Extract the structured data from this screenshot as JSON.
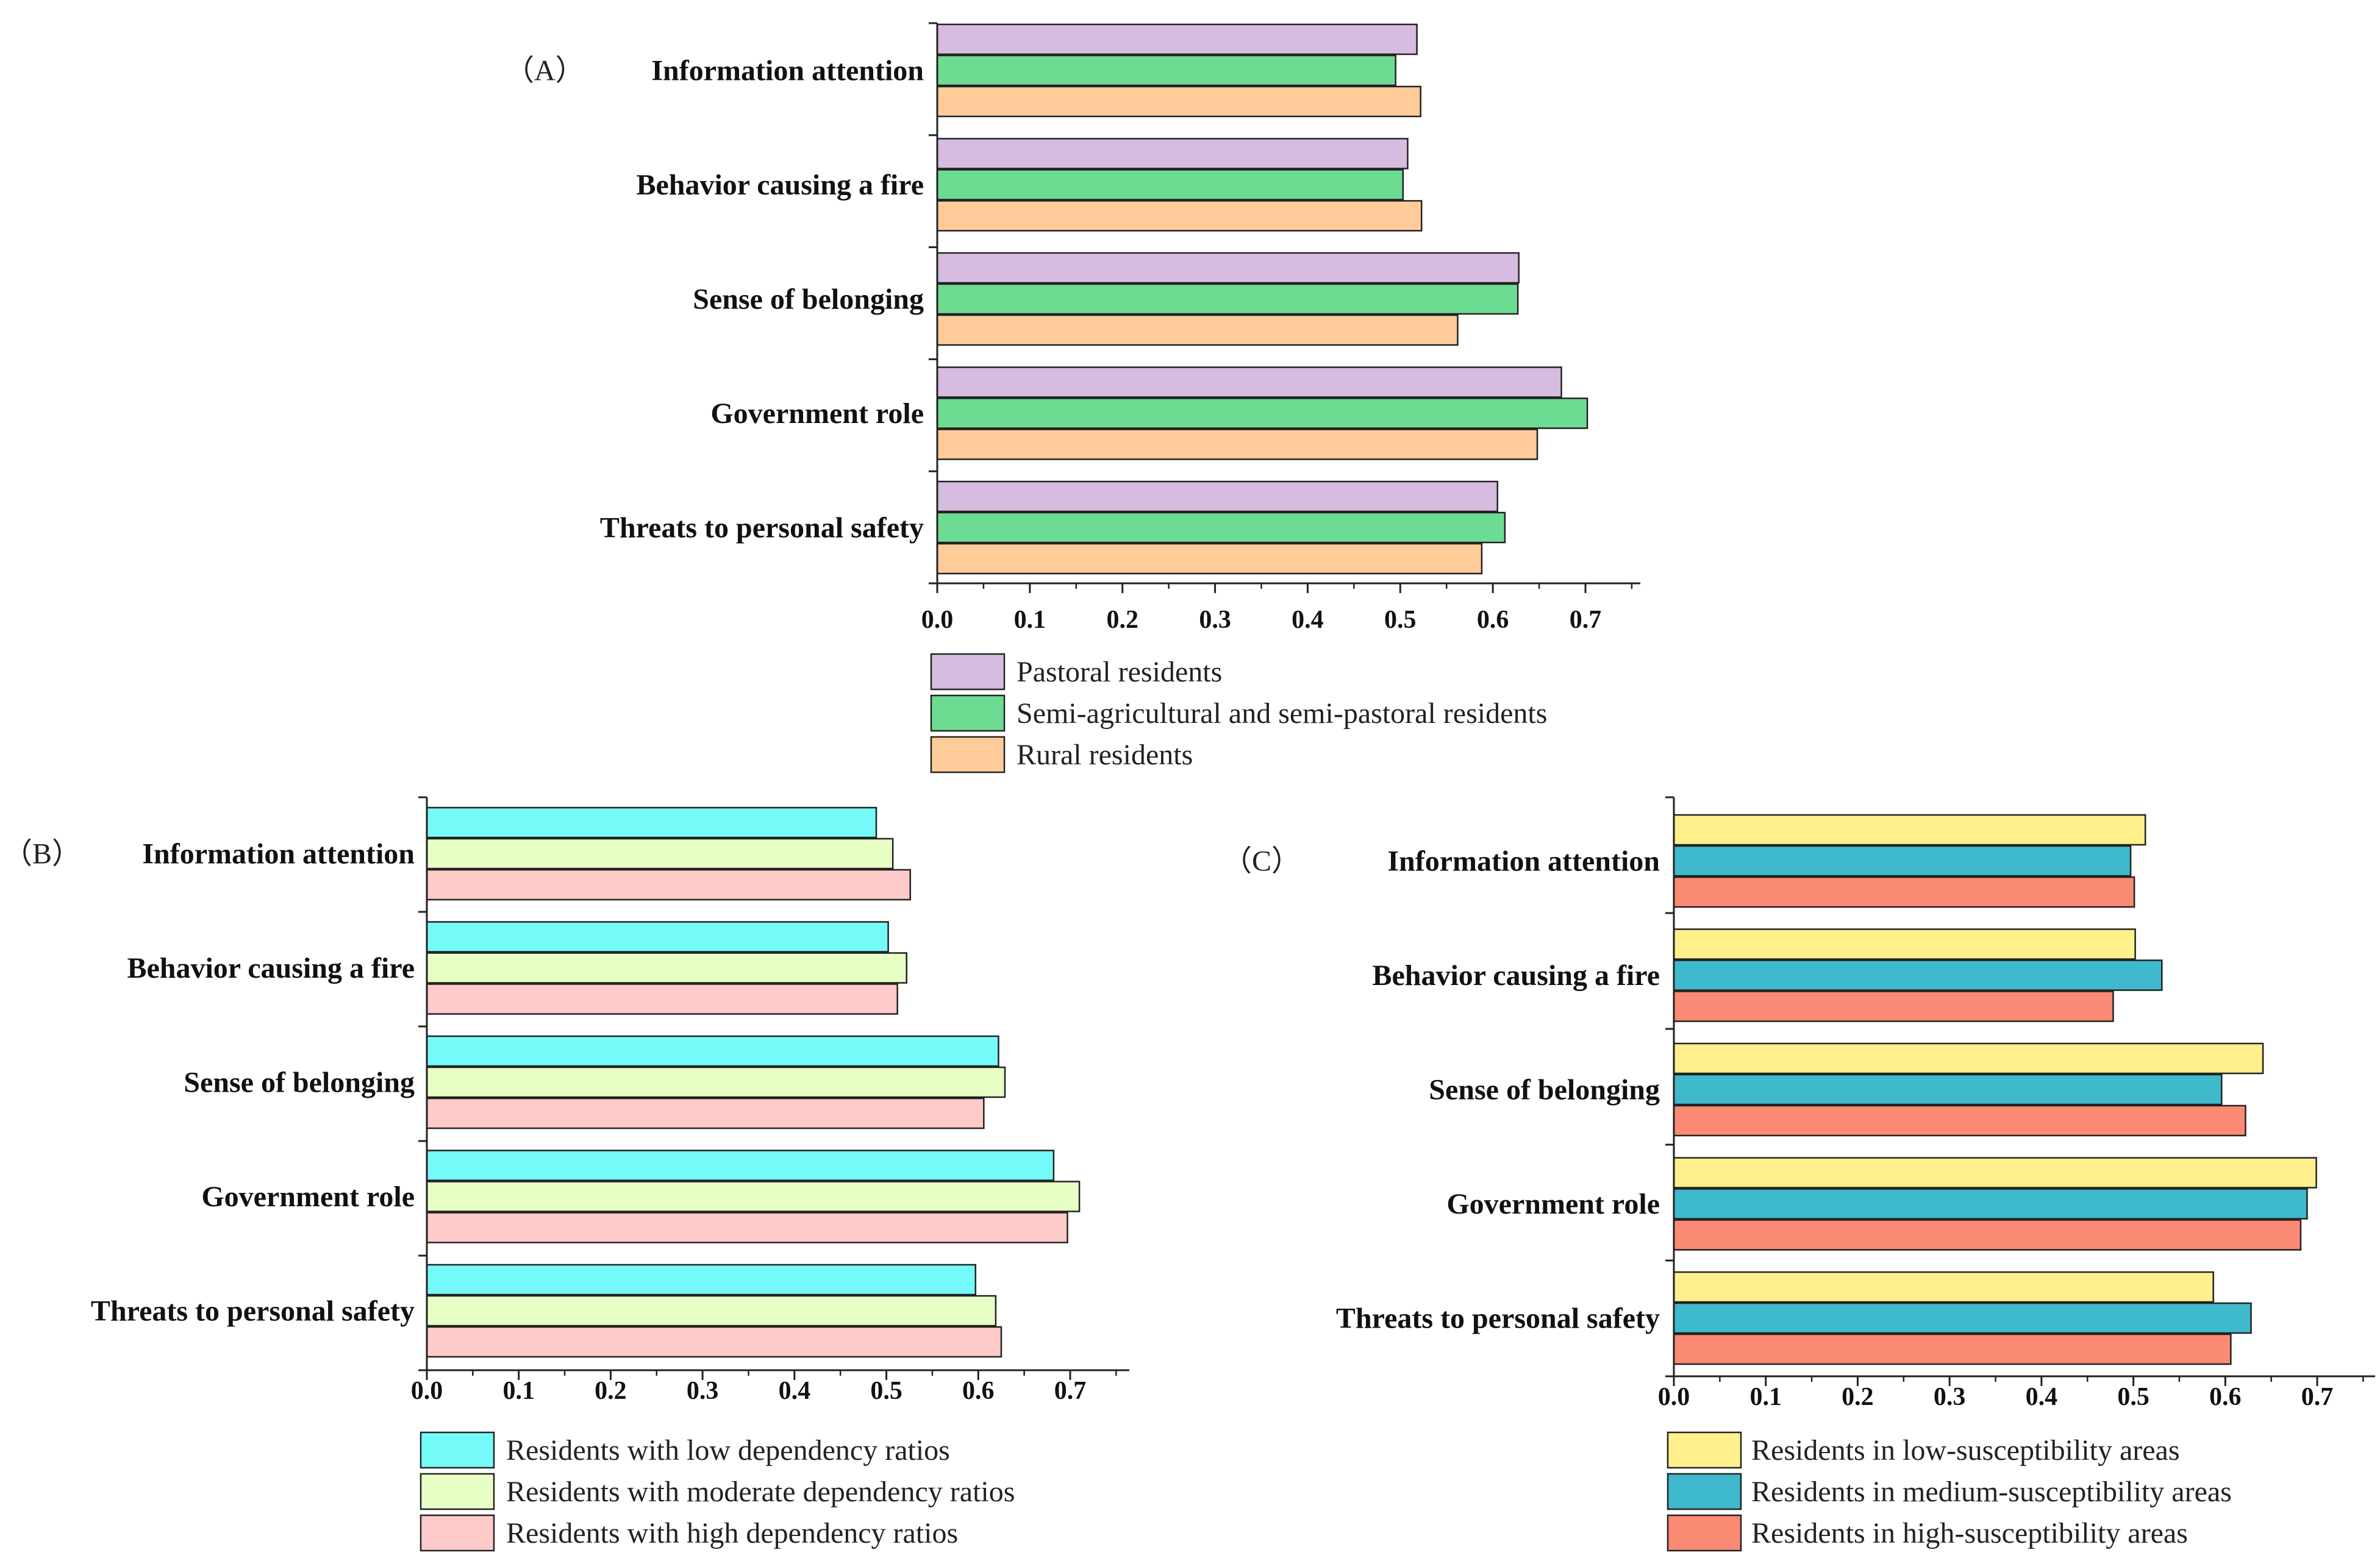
{
  "chart_data": [
    {
      "panel": "A",
      "type": "bar",
      "orientation": "horizontal",
      "panel_label": "（A）",
      "categories": [
        "Information attention",
        "Behavior causing a fire",
        "Sense of belonging",
        "Government role",
        "Threats to personal safety"
      ],
      "series": [
        {
          "name": "Pastoral residents",
          "color": "#D6BCE0",
          "values": [
            0.518,
            0.508,
            0.628,
            0.674,
            0.605
          ]
        },
        {
          "name": "Semi-agricultural and semi-pastoral residents",
          "color": "#6EDB93",
          "values": [
            0.495,
            0.503,
            0.627,
            0.702,
            0.613
          ]
        },
        {
          "name": "Rural residents",
          "color": "#FFCC99",
          "values": [
            0.522,
            0.523,
            0.562,
            0.648,
            0.588
          ]
        }
      ],
      "xlim": [
        0,
        0.76
      ],
      "xticks": [
        "0.0",
        "0.1",
        "0.2",
        "0.3",
        "0.4",
        "0.5",
        "0.6",
        "0.7"
      ],
      "xlabel": "",
      "ylabel": ""
    },
    {
      "panel": "B",
      "type": "bar",
      "orientation": "horizontal",
      "panel_label": "（B）",
      "categories": [
        "Information attention",
        "Behavior causing a fire",
        "Sense of belonging",
        "Government role",
        "Threats to personal safety"
      ],
      "series": [
        {
          "name": "Residents with low dependency ratios",
          "color": "#75FAFA",
          "values": [
            0.489,
            0.502,
            0.622,
            0.682,
            0.597
          ]
        },
        {
          "name": "Residents with moderate dependency ratios",
          "color": "#E7FFC5",
          "values": [
            0.507,
            0.522,
            0.629,
            0.71,
            0.619
          ]
        },
        {
          "name": "Residents with high dependency ratios",
          "color": "#FFCACA",
          "values": [
            0.526,
            0.512,
            0.606,
            0.697,
            0.625
          ]
        }
      ],
      "xlim": [
        0,
        0.76
      ],
      "xticks": [
        "0.0",
        "0.1",
        "0.2",
        "0.3",
        "0.4",
        "0.5",
        "0.6",
        "0.7"
      ],
      "xlabel": "",
      "ylabel": ""
    },
    {
      "panel": "C",
      "type": "bar",
      "orientation": "horizontal",
      "panel_label": "（C）",
      "categories": [
        "Information attention",
        "Behavior causing a fire",
        "Sense of belonging",
        "Government role",
        "Threats to personal safety"
      ],
      "series": [
        {
          "name": "Residents in low-susceptibility areas",
          "color": "#FFF08C",
          "values": [
            0.513,
            0.502,
            0.641,
            0.699,
            0.587
          ]
        },
        {
          "name": "Residents in medium-susceptibility areas",
          "color": "#3FB9CC",
          "values": [
            0.497,
            0.531,
            0.596,
            0.689,
            0.628
          ]
        },
        {
          "name": "Residents in high-susceptibility areas",
          "color": "#FA8A74",
          "values": [
            0.501,
            0.478,
            0.622,
            0.682,
            0.606
          ]
        }
      ],
      "xlim": [
        0,
        0.76
      ],
      "xticks": [
        "0.0",
        "0.1",
        "0.2",
        "0.3",
        "0.4",
        "0.5",
        "0.6",
        "0.7"
      ],
      "xlabel": "",
      "ylabel": ""
    }
  ]
}
